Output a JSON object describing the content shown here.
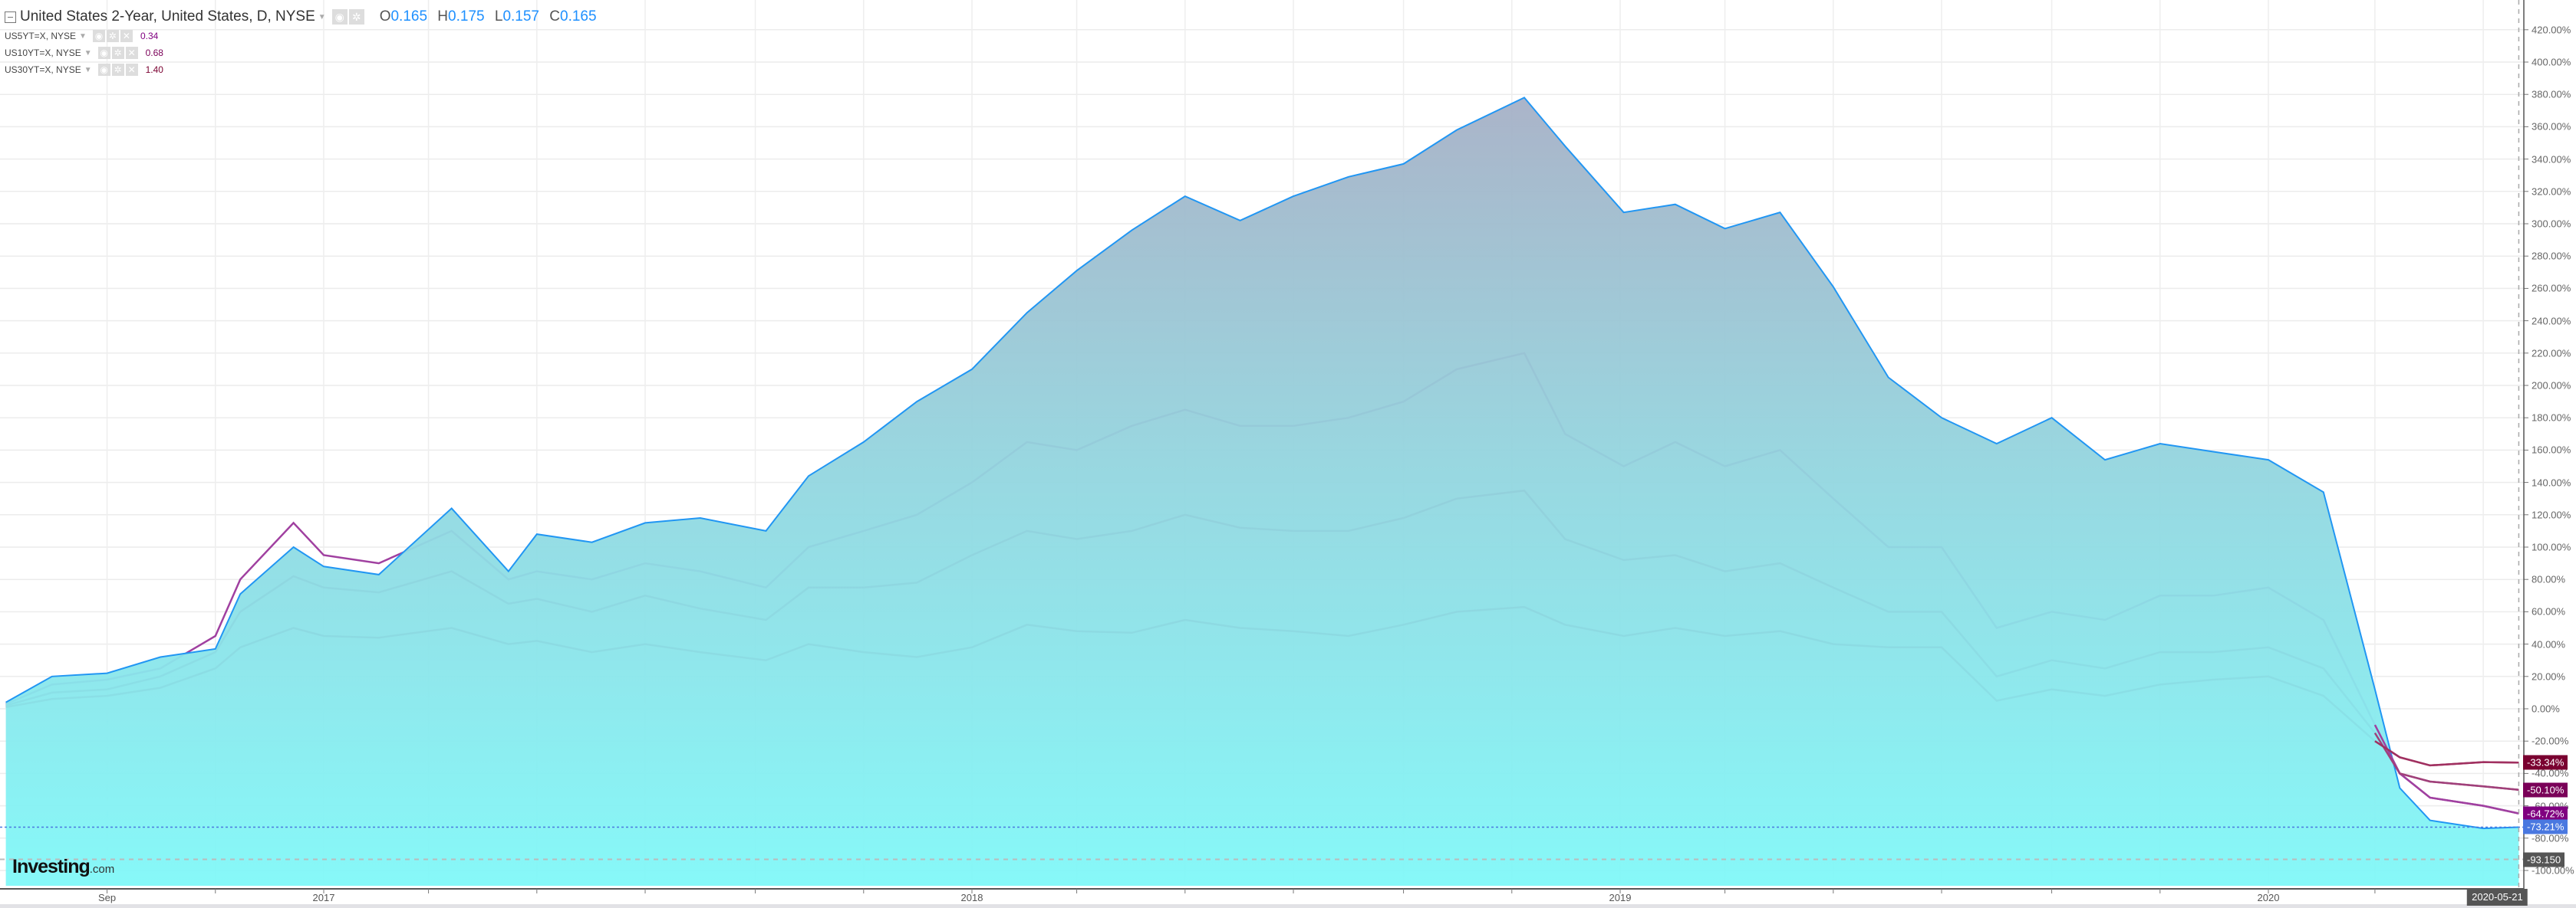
{
  "legend": {
    "main": {
      "title": "United States 2-Year, United States, D, NYSE",
      "o_label": "O",
      "o": "0.165",
      "h_label": "H",
      "h": "0.175",
      "l_label": "L",
      "l": "0.157",
      "c_label": "C",
      "c": "0.165",
      "color": "#1e90ff"
    },
    "series": [
      {
        "label": "US5YT=X, NYSE",
        "value": "0.34",
        "color": "#800080"
      },
      {
        "label": "US10YT=X, NYSE",
        "value": "0.68",
        "color": "#7a0058"
      },
      {
        "label": "US30YT=X, NYSE",
        "value": "1.40",
        "color": "#7a0030"
      }
    ],
    "icons": [
      "collapse-icon",
      "eye-icon",
      "gear-icon",
      "close-icon",
      "caret-down-icon"
    ]
  },
  "logo": {
    "brand": "Investing",
    "suffix": ".com"
  },
  "chart_data": {
    "type": "area",
    "ylim": [
      -110,
      430
    ],
    "y_ticks": [
      "420.00%",
      "400.00%",
      "380.00%",
      "360.00%",
      "340.00%",
      "320.00%",
      "300.00%",
      "280.00%",
      "260.00%",
      "240.00%",
      "220.00%",
      "200.00%",
      "180.00%",
      "160.00%",
      "140.00%",
      "120.00%",
      "100.00%",
      "80.00%",
      "60.00%",
      "40.00%",
      "20.00%",
      "0.00%",
      "-20.00%",
      "-40.00%",
      "-60.00%",
      "-80.00%",
      "-100.00%"
    ],
    "x_ticks": [
      "Sep",
      "2017",
      "2018",
      "2019",
      "2020"
    ],
    "cursor_date": "2020-05-21",
    "grid": true,
    "horizontal_line": {
      "label": "-93.150",
      "value": -93.15
    },
    "dates": [
      "2016-07-06",
      "2016-08-01",
      "2016-09-01",
      "2016-10-01",
      "2016-11-01",
      "2016-11-15",
      "2016-12-15",
      "2017-01-01",
      "2017-02-01",
      "2017-03-14",
      "2017-04-15",
      "2017-05-01",
      "2017-06-01",
      "2017-07-01",
      "2017-08-01",
      "2017-09-07",
      "2017-10-01",
      "2017-11-01",
      "2017-12-01",
      "2018-01-01",
      "2018-02-01",
      "2018-03-01",
      "2018-04-01",
      "2018-05-01",
      "2018-06-01",
      "2018-07-01",
      "2018-08-01",
      "2018-09-01",
      "2018-10-01",
      "2018-11-08",
      "2018-12-01",
      "2019-01-03",
      "2019-02-01",
      "2019-03-01",
      "2019-04-01",
      "2019-05-01",
      "2019-06-01",
      "2019-07-01",
      "2019-08-01",
      "2019-09-01",
      "2019-10-01",
      "2019-11-01",
      "2019-12-01",
      "2020-01-01",
      "2020-02-01",
      "2020-03-01",
      "2020-03-15",
      "2020-04-01",
      "2020-05-01",
      "2020-05-21"
    ],
    "series": [
      {
        "name": "US5YT=X, NYSE",
        "color": "#a040a0",
        "last_label": "-64.72%",
        "label_bg": "#800080",
        "values": [
          3,
          15,
          18,
          25,
          45,
          80,
          115,
          95,
          90,
          110,
          80,
          85,
          80,
          90,
          85,
          75,
          100,
          110,
          120,
          140,
          165,
          160,
          175,
          185,
          175,
          175,
          180,
          190,
          210,
          220,
          170,
          150,
          165,
          150,
          160,
          130,
          100,
          100,
          50,
          60,
          55,
          70,
          70,
          75,
          55,
          -10,
          -40,
          -55,
          -60,
          -64.72
        ]
      },
      {
        "name": "US10YT=X, NYSE",
        "color": "#a0407a",
        "last_label": "-50.10%",
        "label_bg": "#7a0058",
        "values": [
          2,
          10,
          12,
          20,
          35,
          60,
          82,
          75,
          72,
          85,
          65,
          68,
          60,
          70,
          62,
          55,
          75,
          75,
          78,
          95,
          110,
          105,
          110,
          120,
          112,
          110,
          110,
          118,
          130,
          135,
          105,
          92,
          95,
          85,
          90,
          75,
          60,
          60,
          20,
          30,
          25,
          35,
          35,
          38,
          25,
          -15,
          -40,
          -45,
          -48,
          -50.1
        ]
      },
      {
        "name": "US30YT=X, NYSE",
        "color": "#a03060",
        "last_label": "-33.34%",
        "label_bg": "#7a0030",
        "values": [
          1,
          6,
          8,
          13,
          25,
          38,
          50,
          45,
          44,
          50,
          40,
          42,
          35,
          40,
          35,
          30,
          40,
          35,
          32,
          38,
          52,
          48,
          47,
          55,
          50,
          48,
          45,
          52,
          60,
          63,
          52,
          45,
          50,
          45,
          48,
          40,
          38,
          38,
          5,
          12,
          8,
          15,
          18,
          20,
          8,
          -20,
          -30,
          -35,
          -33,
          -33.34
        ]
      },
      {
        "name": "United States 2-Year, United States, D, NYSE",
        "color": "#2196f3",
        "last_label": "-73.21%",
        "label_bg": "#4a78e0",
        "fill": true,
        "values": [
          4,
          20,
          22,
          32,
          37,
          71,
          100,
          88,
          83,
          124,
          85,
          108,
          103,
          115,
          118,
          110,
          144,
          165,
          190,
          210,
          245,
          271,
          296,
          317,
          302,
          317,
          329,
          337,
          358,
          378,
          348,
          307,
          312,
          297,
          307,
          261,
          205,
          180,
          164,
          180,
          154,
          164,
          159,
          154,
          134,
          12,
          -49,
          -69,
          -74,
          -73.21
        ]
      }
    ]
  }
}
